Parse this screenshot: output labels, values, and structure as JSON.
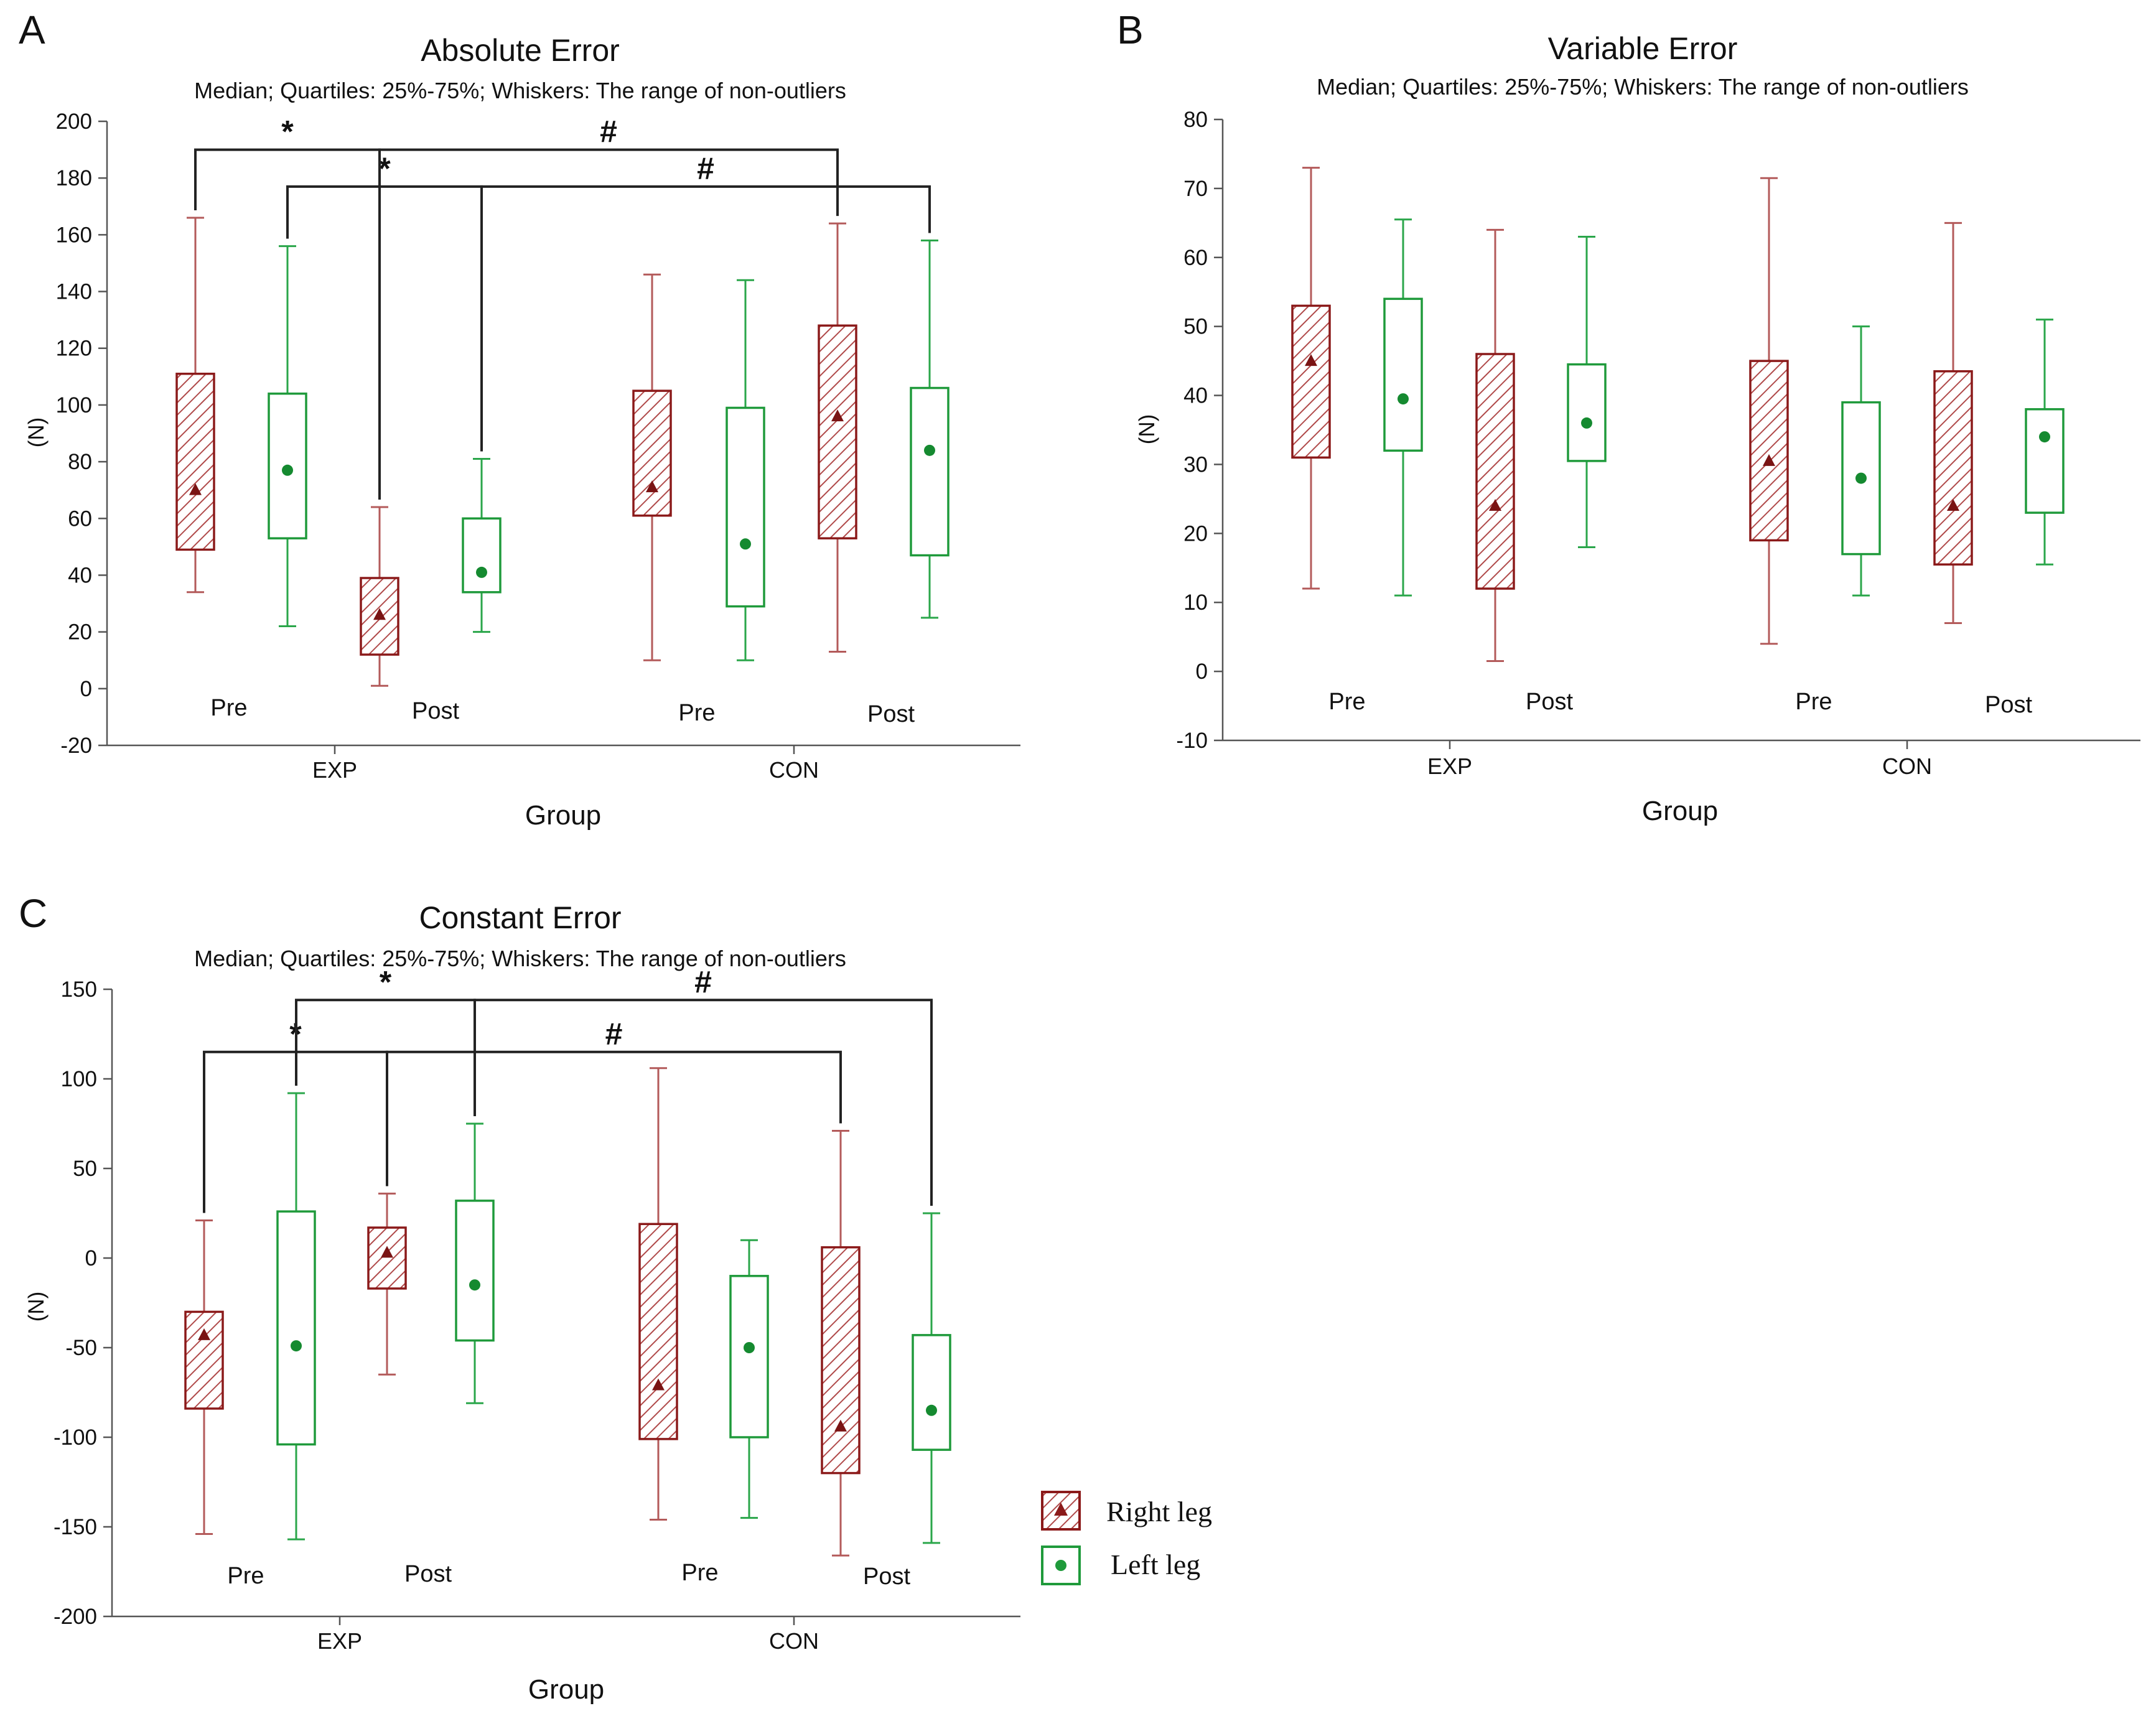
{
  "colors": {
    "right_leg": "#8b1a1a",
    "left_leg": "#1f9a3b",
    "text": "#111111",
    "axis": "#555555"
  },
  "legend": {
    "right_label": "Right leg",
    "left_label": "Left leg"
  },
  "phase_labels": {
    "pre": "Pre",
    "post": "Post"
  },
  "chart_data": [
    {
      "panel": "A",
      "type": "boxplot",
      "title": "Absolute Error",
      "subtitle": "Median; Quartiles: 25%-75%; Whiskers: The range of non-outliers",
      "xlabel": "Group",
      "ylabel": "(N)",
      "ylim": [
        -20,
        200
      ],
      "yticks": [
        "200",
        "180",
        "160",
        "140",
        "120",
        "100",
        "80",
        "60",
        "40",
        "20",
        "0",
        "-20"
      ],
      "ytick_values": [
        200,
        180,
        160,
        140,
        120,
        100,
        80,
        60,
        40,
        20,
        0,
        -20
      ],
      "groups": [
        "EXP",
        "CON"
      ],
      "boxes": [
        {
          "group": "EXP",
          "phase": "Pre",
          "leg": "Right leg",
          "min": 34,
          "q1": 49,
          "median": 70,
          "q3": 111,
          "max": 166
        },
        {
          "group": "EXP",
          "phase": "Pre",
          "leg": "Left leg",
          "min": 22,
          "q1": 53,
          "median": 77,
          "q3": 104,
          "max": 156
        },
        {
          "group": "EXP",
          "phase": "Post",
          "leg": "Right leg",
          "min": 1,
          "q1": 12,
          "median": 26,
          "q3": 39,
          "max": 64
        },
        {
          "group": "EXP",
          "phase": "Post",
          "leg": "Left leg",
          "min": 20,
          "q1": 34,
          "median": 41,
          "q3": 60,
          "max": 81
        },
        {
          "group": "CON",
          "phase": "Pre",
          "leg": "Right leg",
          "min": 10,
          "q1": 61,
          "median": 71,
          "q3": 105,
          "max": 146
        },
        {
          "group": "CON",
          "phase": "Pre",
          "leg": "Left leg",
          "min": 10,
          "q1": 29,
          "median": 51,
          "q3": 99,
          "max": 144
        },
        {
          "group": "CON",
          "phase": "Post",
          "leg": "Right leg",
          "min": 13,
          "q1": 53,
          "median": 96,
          "q3": 128,
          "max": 164
        },
        {
          "group": "CON",
          "phase": "Post",
          "leg": "Left leg",
          "min": 25,
          "q1": 47,
          "median": 84,
          "q3": 106,
          "max": 158
        }
      ],
      "brackets": [
        {
          "symbol": "*",
          "from_box": 0,
          "to_box": 2,
          "level": 190
        },
        {
          "symbol": "*",
          "from_box": 1,
          "to_box": 3,
          "level": 177
        },
        {
          "symbol": "#",
          "from_box": 2,
          "to_box": 6,
          "level": 190
        },
        {
          "symbol": "#",
          "from_box": 3,
          "to_box": 7,
          "level": 177
        }
      ]
    },
    {
      "panel": "B",
      "type": "boxplot",
      "title": "Variable Error",
      "subtitle": "Median; Quartiles: 25%-75%; Whiskers: The range of non-outliers",
      "xlabel": "Group",
      "ylabel": "(N)",
      "ylim": [
        -10,
        80
      ],
      "yticks": [
        "80",
        "70",
        "60",
        "50",
        "40",
        "30",
        "20",
        "10",
        "0",
        "-10"
      ],
      "ytick_values": [
        80,
        70,
        60,
        50,
        40,
        30,
        20,
        10,
        0,
        -10
      ],
      "groups": [
        "EXP",
        "CON"
      ],
      "boxes": [
        {
          "group": "EXP",
          "phase": "Pre",
          "leg": "Right leg",
          "min": 12,
          "q1": 31,
          "median": 45,
          "q3": 53,
          "max": 73
        },
        {
          "group": "EXP",
          "phase": "Pre",
          "leg": "Left leg",
          "min": 11,
          "q1": 32,
          "median": 39.5,
          "q3": 54,
          "max": 65.5
        },
        {
          "group": "EXP",
          "phase": "Post",
          "leg": "Right leg",
          "min": 1.5,
          "q1": 12,
          "median": 24,
          "q3": 46,
          "max": 64
        },
        {
          "group": "EXP",
          "phase": "Post",
          "leg": "Left leg",
          "min": 18,
          "q1": 30.5,
          "median": 36,
          "q3": 44.5,
          "max": 63
        },
        {
          "group": "CON",
          "phase": "Pre",
          "leg": "Right leg",
          "min": 4,
          "q1": 19,
          "median": 30.5,
          "q3": 45,
          "max": 71.5
        },
        {
          "group": "CON",
          "phase": "Pre",
          "leg": "Left leg",
          "min": 11,
          "q1": 17,
          "median": 28,
          "q3": 39,
          "max": 50
        },
        {
          "group": "CON",
          "phase": "Post",
          "leg": "Right leg",
          "min": 7,
          "q1": 15.5,
          "median": 24,
          "q3": 43.5,
          "max": 65
        },
        {
          "group": "CON",
          "phase": "Post",
          "leg": "Left leg",
          "min": 15.5,
          "q1": 23,
          "median": 34,
          "q3": 38,
          "max": 51
        }
      ],
      "brackets": []
    },
    {
      "panel": "C",
      "type": "boxplot",
      "title": "Constant Error",
      "subtitle": "Median; Quartiles: 25%-75%; Whiskers: The range of non-outliers",
      "xlabel": "Group",
      "ylabel": "(N)",
      "ylim": [
        -200,
        150
      ],
      "yticks": [
        "150",
        "100",
        "50",
        "0",
        "-50",
        "-100",
        "-150",
        "-200"
      ],
      "ytick_values": [
        150,
        100,
        50,
        0,
        -50,
        -100,
        -150,
        -200
      ],
      "groups": [
        "EXP",
        "CON"
      ],
      "boxes": [
        {
          "group": "EXP",
          "phase": "Pre",
          "leg": "Right leg",
          "min": -154,
          "q1": -84,
          "median": -43,
          "q3": -30,
          "max": 21
        },
        {
          "group": "EXP",
          "phase": "Pre",
          "leg": "Left leg",
          "min": -157,
          "q1": -104,
          "median": -49,
          "q3": 26,
          "max": 92
        },
        {
          "group": "EXP",
          "phase": "Post",
          "leg": "Right leg",
          "min": -65,
          "q1": -17,
          "median": 3,
          "q3": 17,
          "max": 36
        },
        {
          "group": "EXP",
          "phase": "Post",
          "leg": "Left leg",
          "min": -81,
          "q1": -46,
          "median": -15,
          "q3": 32,
          "max": 75
        },
        {
          "group": "CON",
          "phase": "Pre",
          "leg": "Right leg",
          "min": -146,
          "q1": -101,
          "median": -71,
          "q3": 19,
          "max": 106
        },
        {
          "group": "CON",
          "phase": "Pre",
          "leg": "Left leg",
          "min": -145,
          "q1": -100,
          "median": -50,
          "q3": -10,
          "max": 10
        },
        {
          "group": "CON",
          "phase": "Post",
          "leg": "Right leg",
          "min": -166,
          "q1": -120,
          "median": -94,
          "q3": 6,
          "max": 71
        },
        {
          "group": "CON",
          "phase": "Post",
          "leg": "Left leg",
          "min": -159,
          "q1": -107,
          "median": -85,
          "q3": -43,
          "max": 25
        }
      ],
      "brackets": [
        {
          "symbol": "*",
          "from_box": 0,
          "to_box": 2,
          "level": 115
        },
        {
          "symbol": "*",
          "from_box": 1,
          "to_box": 3,
          "level": 144
        },
        {
          "symbol": "#",
          "from_box": 2,
          "to_box": 6,
          "level": 115
        },
        {
          "symbol": "#",
          "from_box": 3,
          "to_box": 7,
          "level": 144
        }
      ]
    }
  ]
}
